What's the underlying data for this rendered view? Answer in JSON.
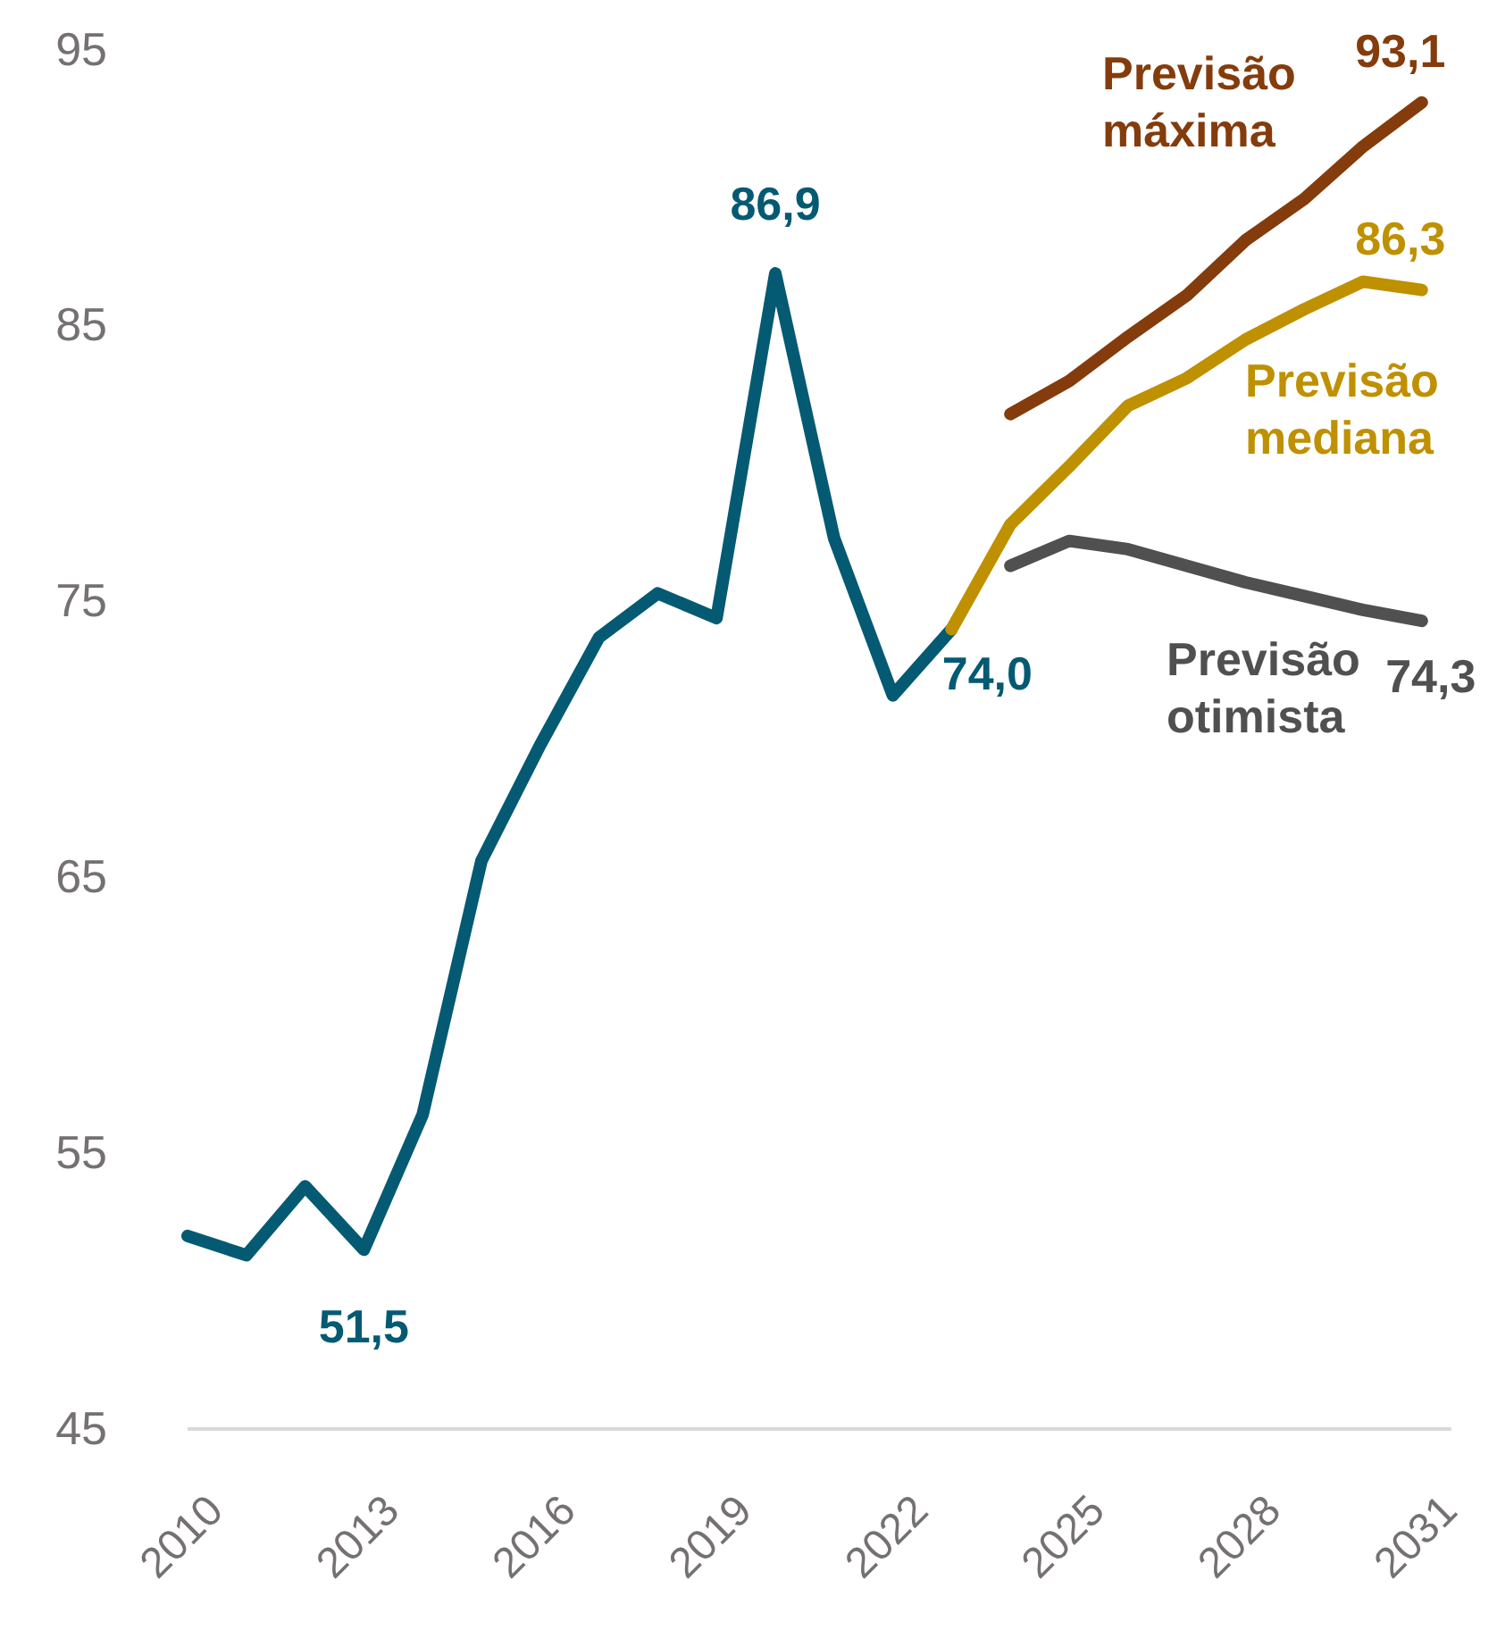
{
  "chart_data": {
    "type": "line",
    "xlim": [
      2010,
      2031.5
    ],
    "xticks": [
      2010,
      2013,
      2016,
      2019,
      2022,
      2025,
      2028,
      2031
    ],
    "ylim": [
      45,
      95
    ],
    "yticks": [
      45,
      55,
      65,
      75,
      85,
      95
    ],
    "grid": false,
    "marker": "none",
    "line_style": "solid",
    "series": [
      {
        "color": "#045a72",
        "x": [
          2010,
          2011,
          2012,
          2013,
          2014,
          2015,
          2016,
          2017,
          2018,
          2019,
          2020,
          2021,
          2022,
          2023
        ],
        "values": [
          52.0,
          51.3,
          53.8,
          51.5,
          56.4,
          65.6,
          69.8,
          73.7,
          75.3,
          74.4,
          86.9,
          77.3,
          71.6,
          74.0
        ]
      },
      {
        "name": "Previsão máxima",
        "color": "#843c0c",
        "x": [
          2024,
          2025,
          2026,
          2027,
          2028,
          2029,
          2030,
          2031
        ],
        "values": [
          81.8,
          83.0,
          84.6,
          86.1,
          88.1,
          89.6,
          91.5,
          93.1
        ]
      },
      {
        "name": "Previsão mediana",
        "color": "#bf9000",
        "x": [
          2023,
          2024,
          2025,
          2026,
          2027,
          2028,
          2029,
          2030,
          2031
        ],
        "values": [
          74.0,
          77.8,
          79.9,
          82.1,
          83.1,
          84.5,
          85.6,
          86.6,
          86.3
        ]
      },
      {
        "name": "Previsão otimista",
        "color": "#505050",
        "x": [
          2024,
          2025,
          2026,
          2027,
          2028,
          2029,
          2030,
          2031
        ],
        "values": [
          76.3,
          77.2,
          76.9,
          76.3,
          75.7,
          75.2,
          74.7,
          74.3
        ]
      }
    ],
    "annotations": [
      {
        "text": "86,9",
        "x": 2020,
        "y": 86.9
      },
      {
        "text": "51,5",
        "x": 2013,
        "y": 51.5
      },
      {
        "text": "74,0",
        "x": 2023,
        "y": 74.0
      },
      {
        "text": "93,1",
        "x": 2031,
        "y": 93.1
      },
      {
        "text": "86,3",
        "x": 2031,
        "y": 86.3
      },
      {
        "text": "74,3",
        "x": 2031,
        "y": 74.3
      }
    ]
  }
}
